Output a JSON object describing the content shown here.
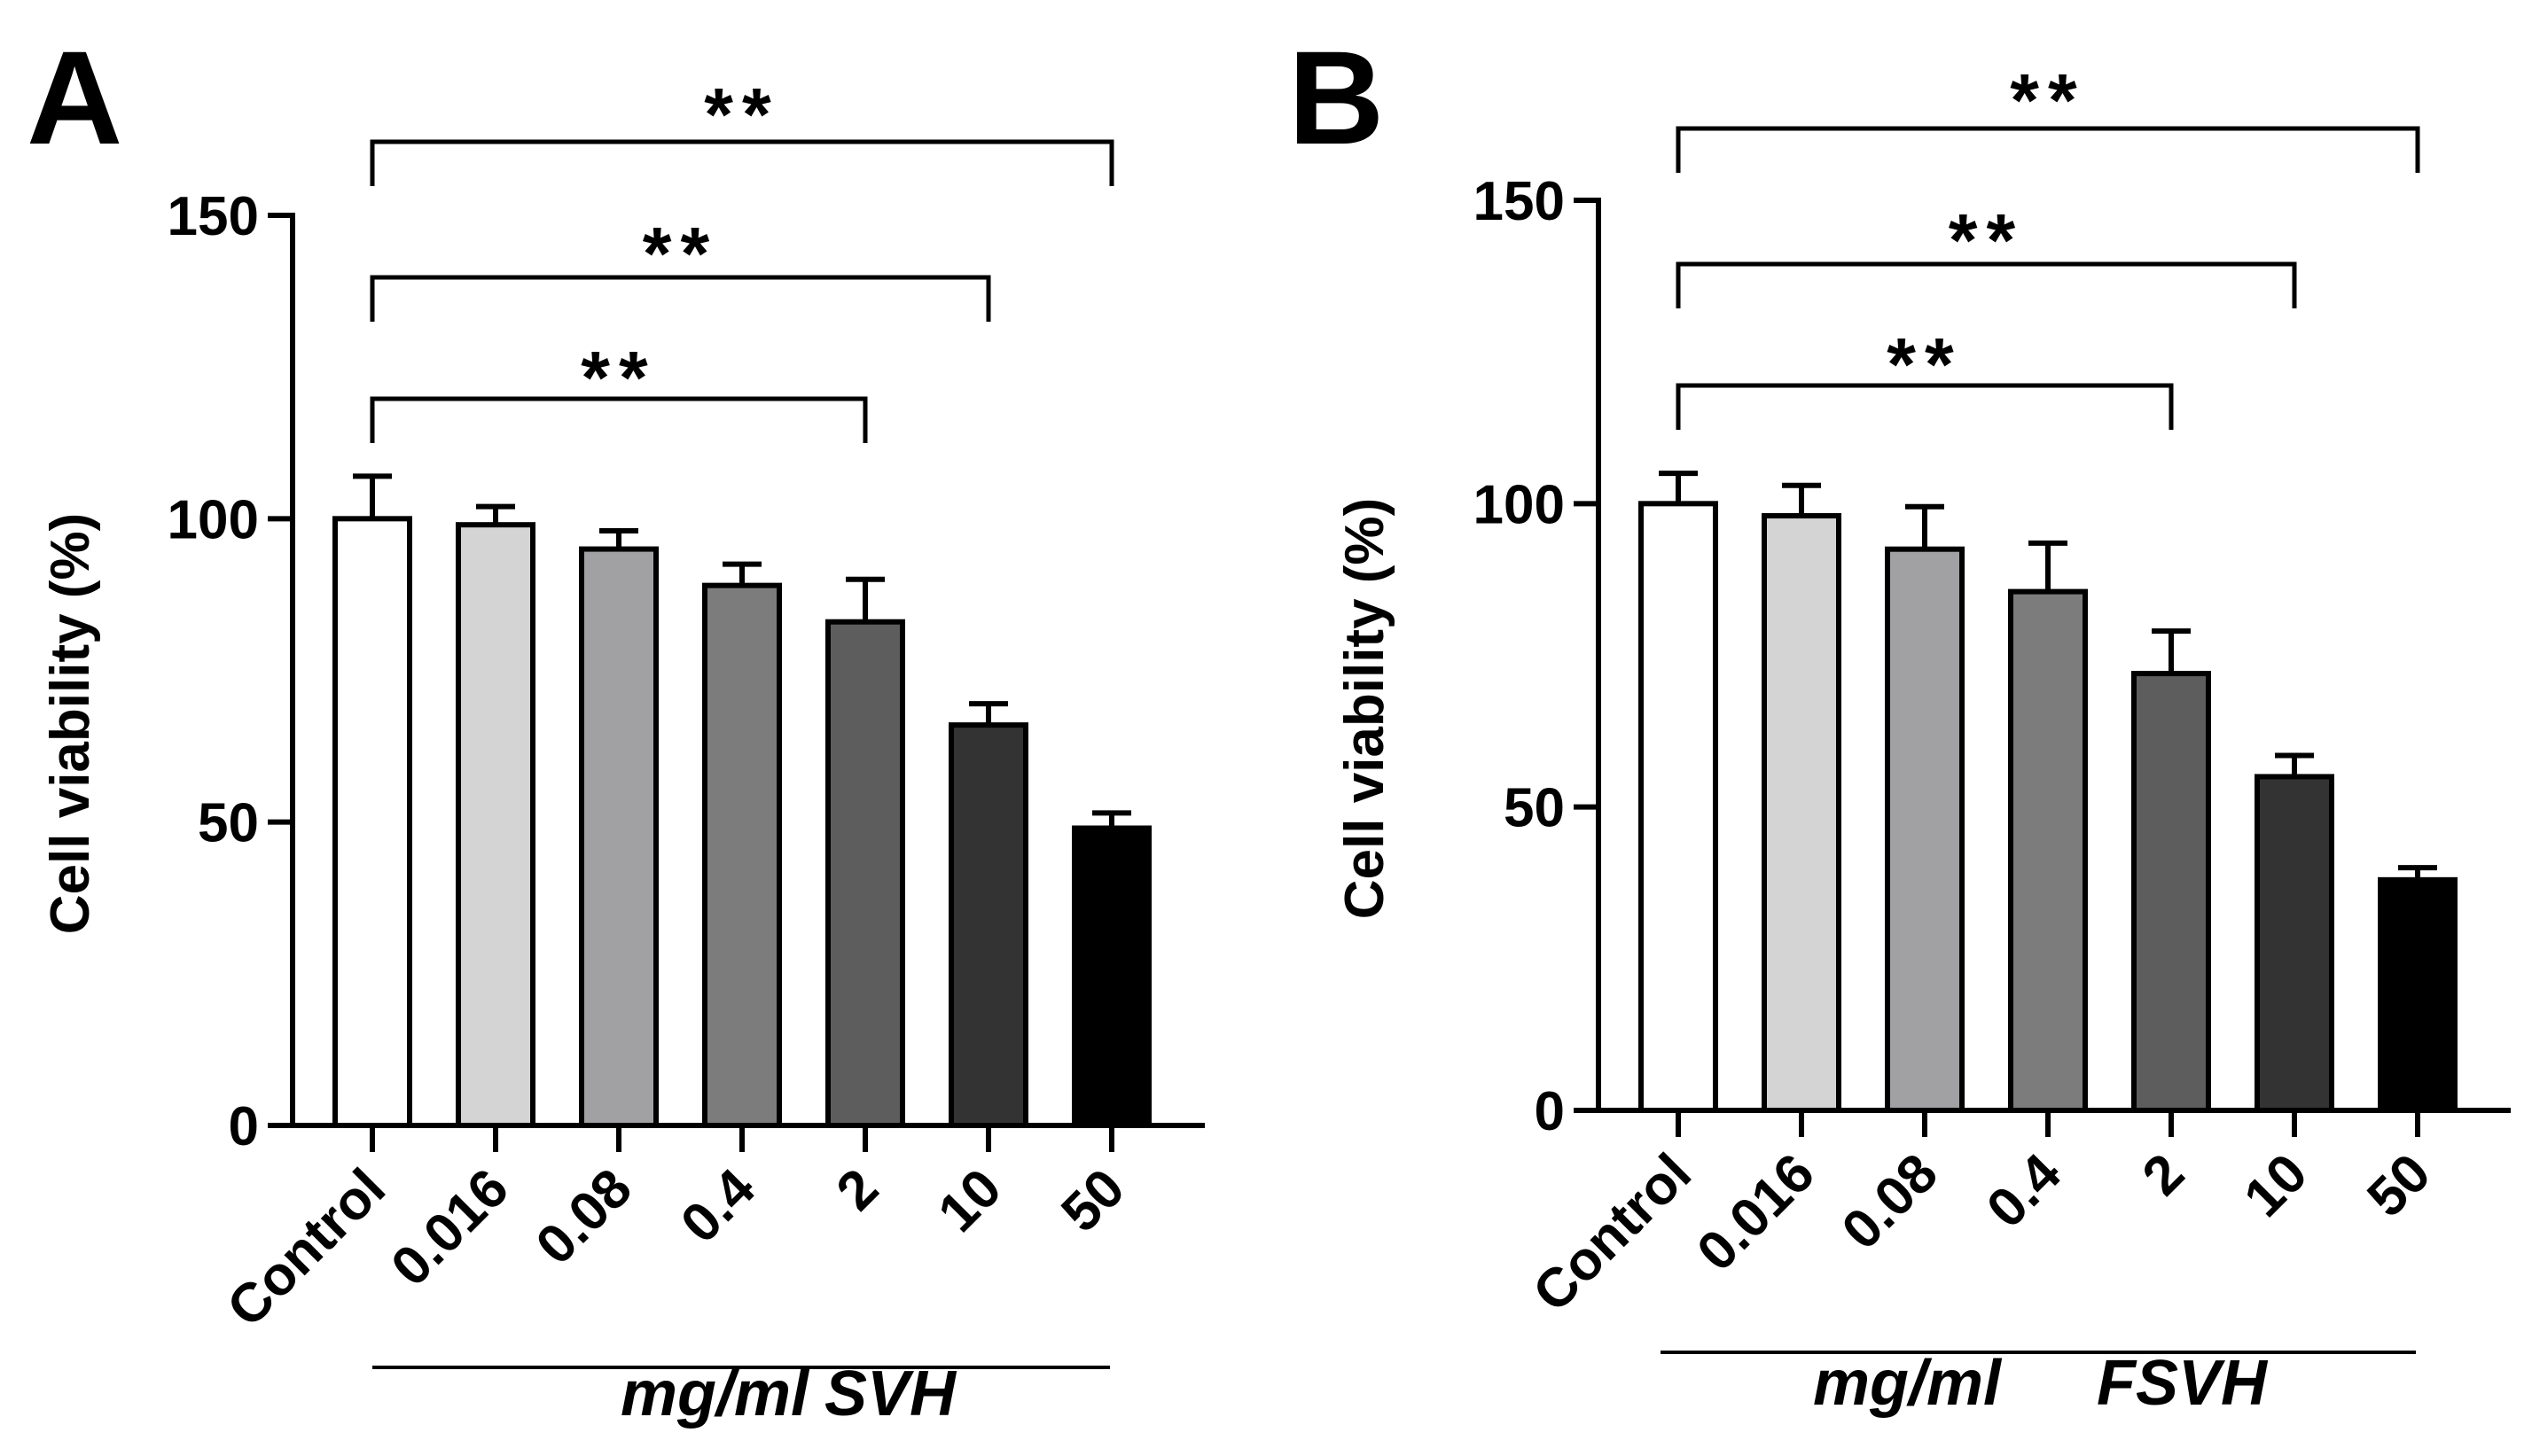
{
  "chart_data": [
    {
      "panel": "A",
      "type": "bar",
      "ylabel": "Cell viability (%)",
      "ylim": [
        0,
        150
      ],
      "yticks": [
        0,
        50,
        100,
        150
      ],
      "categories": [
        "Control",
        "0.016",
        "0.08",
        "0.4",
        "2",
        "10",
        "50"
      ],
      "values": [
        100,
        99,
        95,
        89,
        83,
        66,
        49
      ],
      "errors": [
        7,
        3,
        3,
        3.5,
        7,
        3.5,
        2.5
      ],
      "colors": [
        "#ffffff",
        "#d4d4d4",
        "#a1a1a4",
        "#7c7c7c",
        "#5d5d5d",
        "#333333",
        "#000000"
      ],
      "xcaption": {
        "unit": "mg/ml",
        "label": "SVH"
      },
      "significance": [
        {
          "from": "Control",
          "to": "2",
          "label": "**"
        },
        {
          "from": "Control",
          "to": "10",
          "label": "**"
        },
        {
          "from": "Control",
          "to": "50",
          "label": "**"
        }
      ]
    },
    {
      "panel": "B",
      "type": "bar",
      "ylabel": "Cell viability (%)",
      "ylim": [
        0,
        150
      ],
      "yticks": [
        0,
        50,
        100,
        150
      ],
      "categories": [
        "Control",
        "0.016",
        "0.08",
        "0.4",
        "2",
        "10",
        "50"
      ],
      "values": [
        100,
        98,
        92.5,
        85.5,
        72,
        55,
        38
      ],
      "errors": [
        5,
        5,
        7,
        8,
        7,
        3.5,
        2
      ],
      "colors": [
        "#ffffff",
        "#d4d4d4",
        "#a1a1a4",
        "#7c7c7c",
        "#5d5d5d",
        "#333333",
        "#000000"
      ],
      "xcaption": {
        "unit": "mg/ml",
        "label": "FSVH"
      },
      "significance": [
        {
          "from": "Control",
          "to": "2",
          "label": "**"
        },
        {
          "from": "Control",
          "to": "10",
          "label": "**"
        },
        {
          "from": "Control",
          "to": "50",
          "label": "**"
        }
      ]
    }
  ]
}
